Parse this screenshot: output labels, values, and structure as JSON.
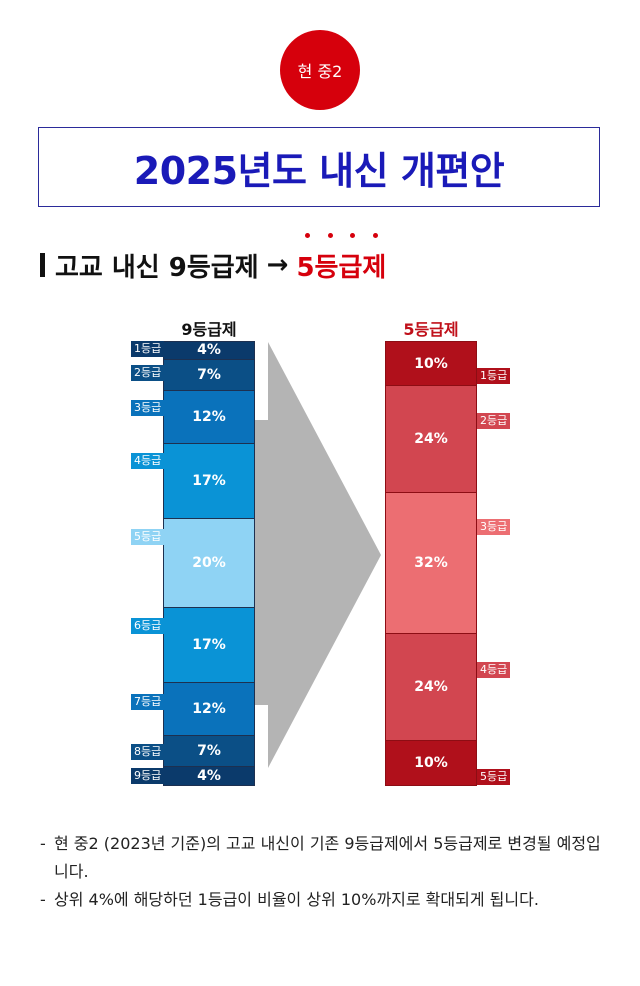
{
  "badge": "현 중2",
  "title": "2025년도 내신 개편안",
  "subtitle": {
    "prefix": "고교 내신 9등급제",
    "arrow": "→",
    "highlight": "5등급제"
  },
  "chart_data": {
    "type": "stacked-bar",
    "columns": [
      {
        "name": "9등급제",
        "grades": [
          "1등급",
          "2등급",
          "3등급",
          "4등급",
          "5등급",
          "6등급",
          "7등급",
          "8등급",
          "9등급"
        ],
        "values": [
          4,
          7,
          12,
          17,
          20,
          17,
          12,
          7,
          4
        ],
        "labels": [
          "4%",
          "7%",
          "12%",
          "17%",
          "20%",
          "17%",
          "12%",
          "7%",
          "4%"
        ],
        "colors": [
          "#0b3a6b",
          "#0b4f86",
          "#0a72bb",
          "#0a93d6",
          "#8fd3f4",
          "#0a93d6",
          "#0a72bb",
          "#0b4f86",
          "#0b3a6b"
        ],
        "text_colors": [
          "#ffffff",
          "#ffffff",
          "#ffffff",
          "#ffffff",
          "#ffffff",
          "#ffffff",
          "#ffffff",
          "#ffffff",
          "#ffffff"
        ],
        "tag_colors": [
          "#0b3a6b",
          "#0b4f86",
          "#0a72bb",
          "#0a93d6",
          "#8fd3f4",
          "#0a93d6",
          "#0a72bb",
          "#0b4f86",
          "#0b3a6b"
        ]
      },
      {
        "name": "5등급제",
        "grades": [
          "1등급",
          "2등급",
          "3등급",
          "4등급",
          "5등급"
        ],
        "values": [
          10,
          24,
          32,
          24,
          10
        ],
        "labels": [
          "10%",
          "24%",
          "32%",
          "24%",
          "10%"
        ],
        "colors": [
          "#b0101b",
          "#d24650",
          "#ec6e72",
          "#d24650",
          "#b0101b"
        ],
        "text_colors": [
          "#ffffff",
          "#ffffff",
          "#ffffff",
          "#ffffff",
          "#ffffff"
        ],
        "tag_colors": [
          "#b0101b",
          "#d24650",
          "#ec6e72",
          "#d24650",
          "#b0101b"
        ]
      }
    ],
    "head_colors": [
      "#111111",
      "#c0101a"
    ],
    "arrow_color": "#b4b4b4"
  },
  "notes": [
    "현 중2 (2023년 기준)의 고교 내신이 기존 9등급제에서 5등급제로 변경될 예정입니다.",
    "상위 4%에 해당하던 1등급이 비율이 상위 10%까지로 확대되게 됩니다."
  ],
  "note_dash": "-"
}
